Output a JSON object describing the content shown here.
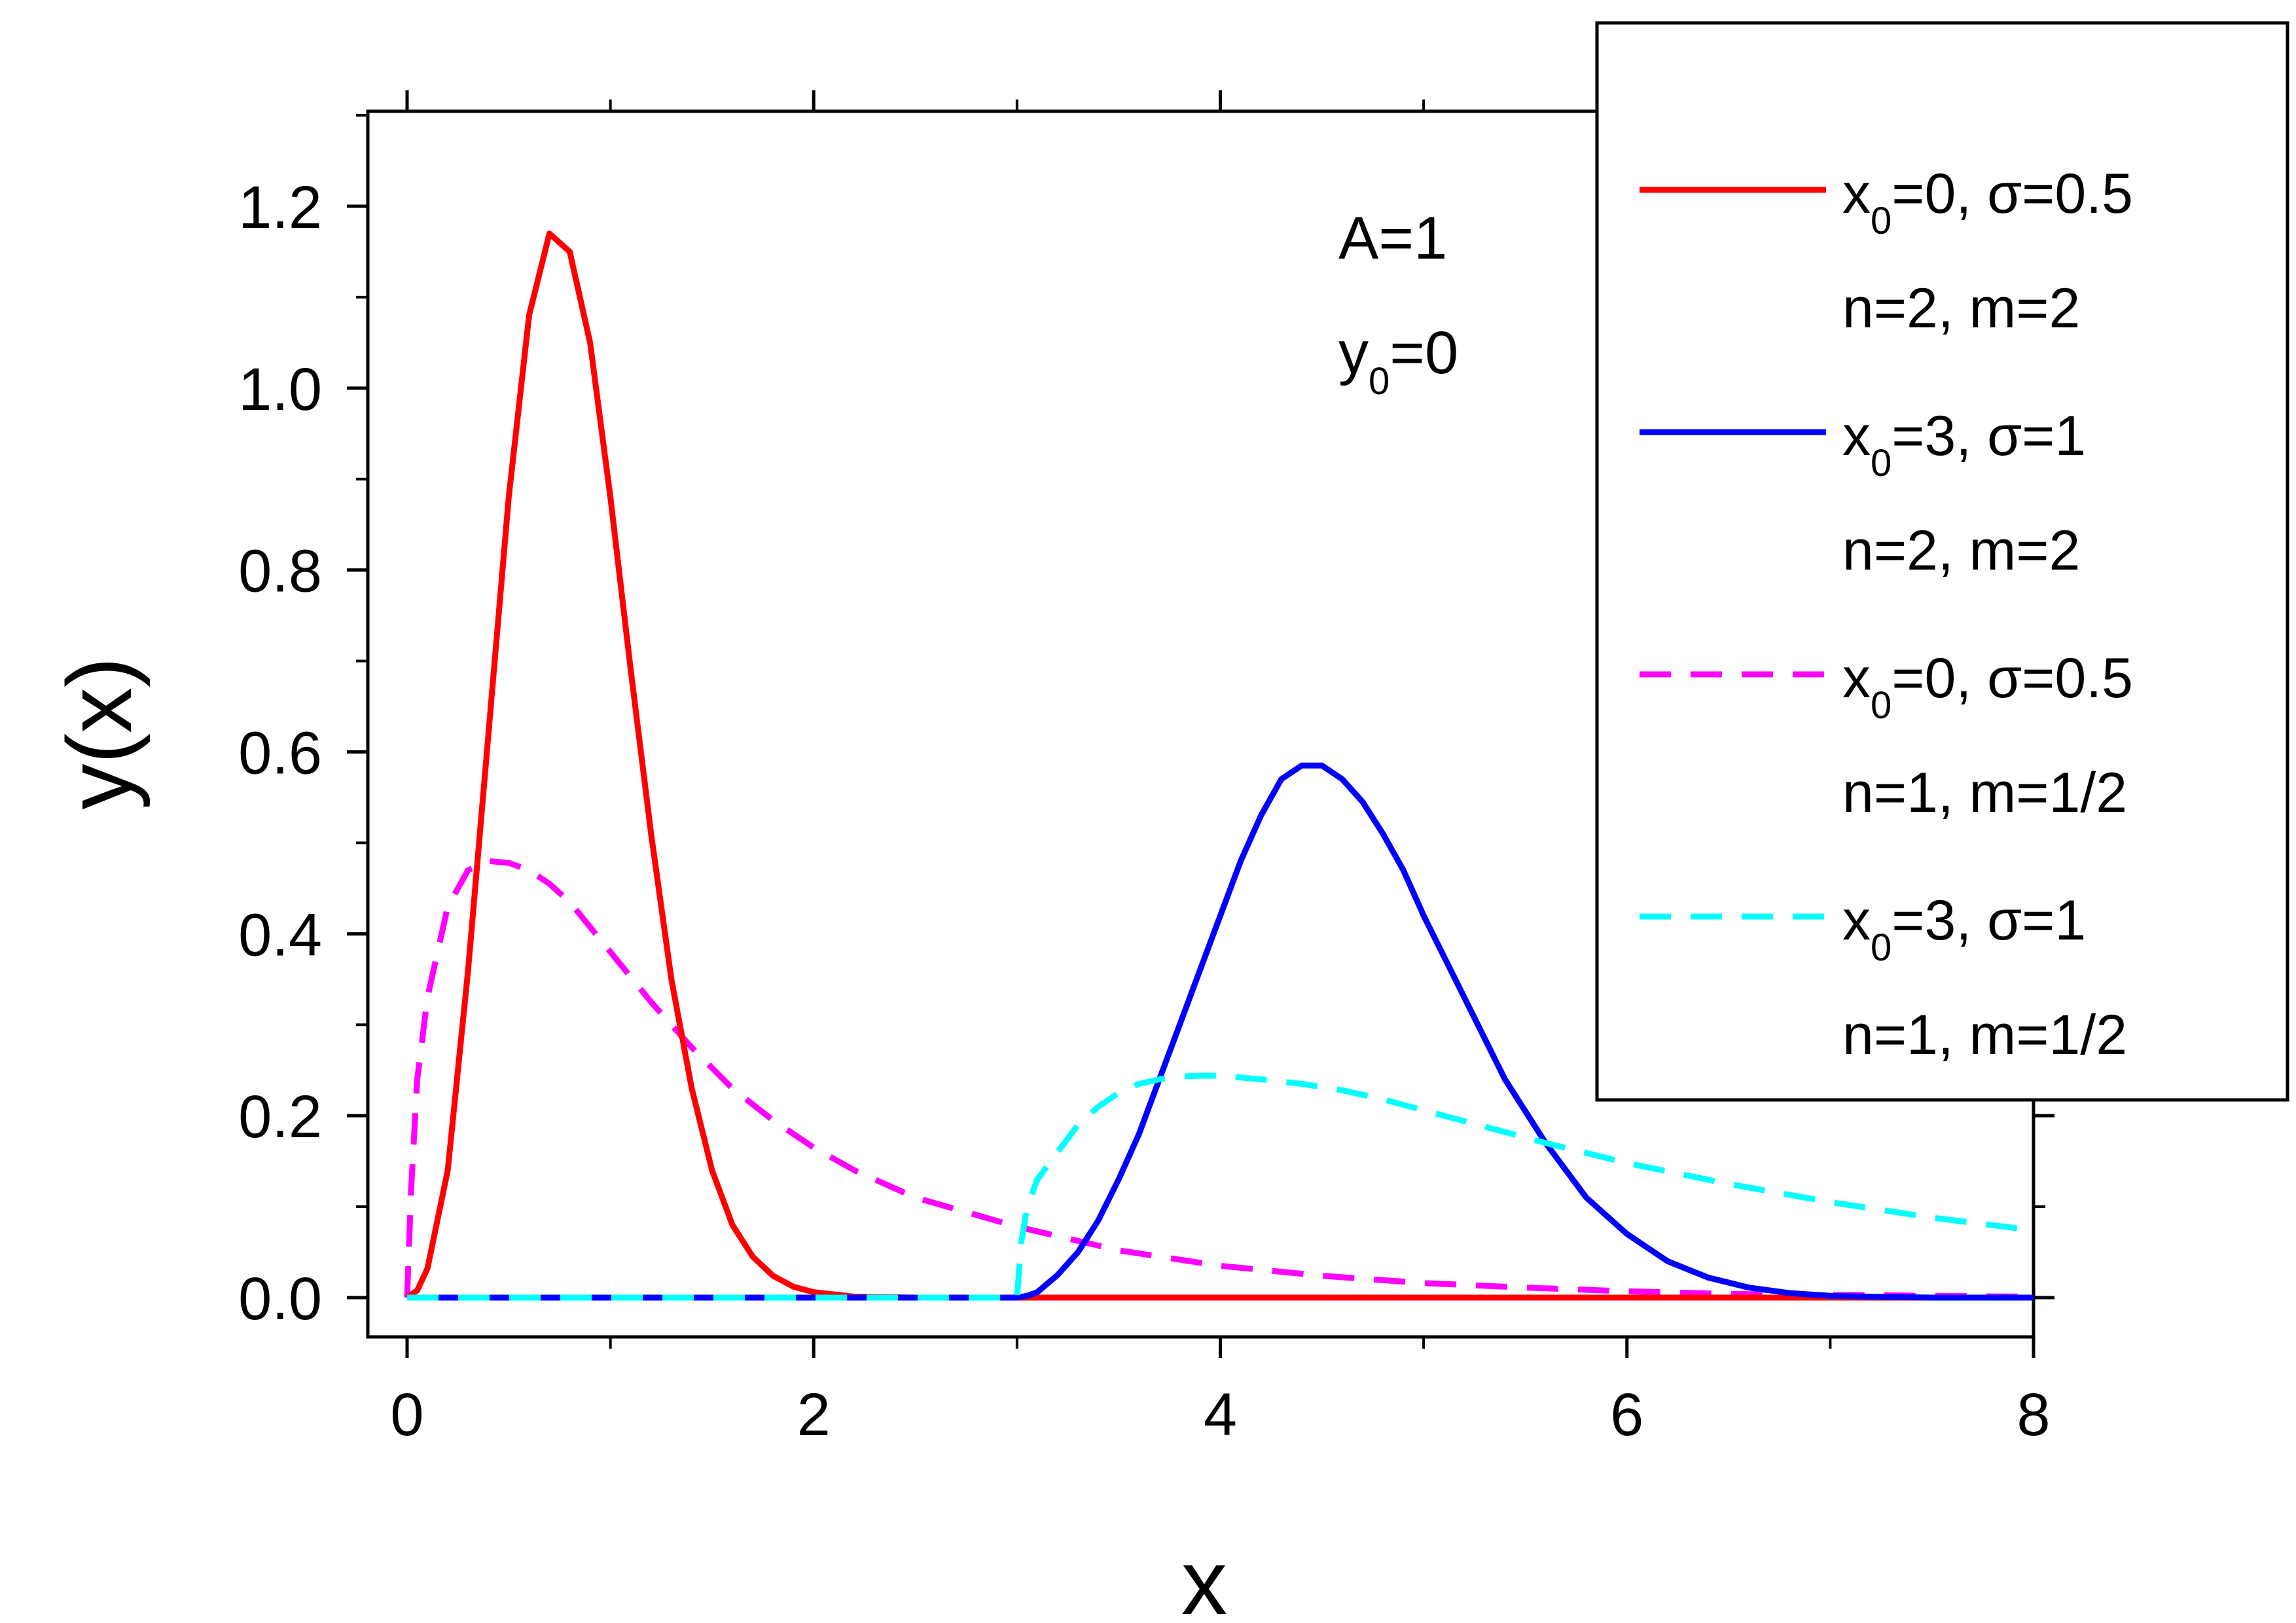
{
  "chart_data": {
    "type": "line",
    "xlabel": "x",
    "ylabel": "y(x)",
    "xlim": [
      -0.2,
      8
    ],
    "ylim": [
      -0.05,
      1.3
    ],
    "xticks": [
      0,
      2,
      4,
      6,
      8
    ],
    "xtick_labels": [
      "0",
      "2",
      "4",
      "6",
      "8"
    ],
    "yticks": [
      0.0,
      0.2,
      0.4,
      0.6,
      0.8,
      1.0,
      1.2
    ],
    "ytick_labels": [
      "0.0",
      "0.2",
      "0.4",
      "0.6",
      "0.8",
      "1.0",
      "1.2"
    ],
    "grid": false,
    "legend_position": "top-right",
    "annotations": [
      {
        "base": "A=1",
        "sub": "",
        "rest": ""
      },
      {
        "base": "y",
        "sub": "0",
        "rest": "=0"
      }
    ],
    "series": [
      {
        "legend_line1": {
          "base": "x",
          "sub": "0",
          "rest": "=0, σ=0.5"
        },
        "legend_line2": "n=2, m=2",
        "color": "#ff0000",
        "dash": "solid",
        "points": [
          [
            0,
            0
          ],
          [
            0.05,
            0.008
          ],
          [
            0.1,
            0.032
          ],
          [
            0.2,
            0.14
          ],
          [
            0.3,
            0.36
          ],
          [
            0.4,
            0.62
          ],
          [
            0.5,
            0.88
          ],
          [
            0.6,
            1.08
          ],
          [
            0.7,
            1.17
          ],
          [
            0.8,
            1.15
          ],
          [
            0.9,
            1.05
          ],
          [
            1.0,
            0.88
          ],
          [
            1.1,
            0.69
          ],
          [
            1.2,
            0.51
          ],
          [
            1.3,
            0.35
          ],
          [
            1.4,
            0.23
          ],
          [
            1.5,
            0.14
          ],
          [
            1.6,
            0.08
          ],
          [
            1.7,
            0.045
          ],
          [
            1.8,
            0.024
          ],
          [
            1.9,
            0.012
          ],
          [
            2.0,
            0.006
          ],
          [
            2.2,
            0.001
          ],
          [
            2.5,
            0
          ],
          [
            3,
            0
          ],
          [
            4,
            0
          ],
          [
            5,
            0
          ],
          [
            6,
            0
          ],
          [
            7,
            0
          ],
          [
            8,
            0
          ]
        ]
      },
      {
        "legend_line1": {
          "base": "x",
          "sub": "0",
          "rest": "=3, σ=1"
        },
        "legend_line2": "n=2, m=2",
        "color": "#0000ff",
        "dash": "solid",
        "points": [
          [
            0,
            0
          ],
          [
            1,
            0
          ],
          [
            2,
            0
          ],
          [
            3,
            0
          ],
          [
            3.05,
            0.002
          ],
          [
            3.1,
            0.006
          ],
          [
            3.2,
            0.025
          ],
          [
            3.3,
            0.05
          ],
          [
            3.4,
            0.085
          ],
          [
            3.5,
            0.13
          ],
          [
            3.6,
            0.18
          ],
          [
            3.7,
            0.24
          ],
          [
            3.8,
            0.3
          ],
          [
            3.9,
            0.36
          ],
          [
            4.0,
            0.42
          ],
          [
            4.1,
            0.48
          ],
          [
            4.2,
            0.53
          ],
          [
            4.3,
            0.57
          ],
          [
            4.4,
            0.585
          ],
          [
            4.5,
            0.585
          ],
          [
            4.6,
            0.57
          ],
          [
            4.7,
            0.545
          ],
          [
            4.8,
            0.51
          ],
          [
            4.9,
            0.47
          ],
          [
            5.0,
            0.42
          ],
          [
            5.2,
            0.33
          ],
          [
            5.4,
            0.24
          ],
          [
            5.6,
            0.17
          ],
          [
            5.8,
            0.11
          ],
          [
            6.0,
            0.07
          ],
          [
            6.2,
            0.04
          ],
          [
            6.4,
            0.022
          ],
          [
            6.6,
            0.011
          ],
          [
            6.8,
            0.005
          ],
          [
            7.0,
            0.002
          ],
          [
            7.2,
            0.001
          ],
          [
            7.5,
            0
          ],
          [
            8,
            0
          ]
        ]
      },
      {
        "legend_line1": {
          "base": "x",
          "sub": "0",
          "rest": "=0, σ=0.5"
        },
        "legend_line2": "n=1, m=1/2",
        "color": "#ff00ff",
        "dash": "dashed",
        "points": [
          [
            0,
            0
          ],
          [
            0.02,
            0.12
          ],
          [
            0.05,
            0.24
          ],
          [
            0.1,
            0.33
          ],
          [
            0.2,
            0.43
          ],
          [
            0.3,
            0.47
          ],
          [
            0.4,
            0.48
          ],
          [
            0.5,
            0.478
          ],
          [
            0.6,
            0.47
          ],
          [
            0.7,
            0.455
          ],
          [
            0.8,
            0.435
          ],
          [
            1.0,
            0.38
          ],
          [
            1.2,
            0.325
          ],
          [
            1.4,
            0.275
          ],
          [
            1.6,
            0.23
          ],
          [
            1.8,
            0.195
          ],
          [
            2.0,
            0.165
          ],
          [
            2.2,
            0.14
          ],
          [
            2.5,
            0.11
          ],
          [
            3.0,
            0.078
          ],
          [
            3.5,
            0.052
          ],
          [
            4.0,
            0.035
          ],
          [
            4.5,
            0.024
          ],
          [
            5.0,
            0.016
          ],
          [
            5.5,
            0.011
          ],
          [
            6.0,
            0.007
          ],
          [
            6.5,
            0.004
          ],
          [
            7.0,
            0.003
          ],
          [
            7.5,
            0.002
          ],
          [
            8.0,
            0.001
          ]
        ]
      },
      {
        "legend_line1": {
          "base": "x",
          "sub": "0",
          "rest": "=3, σ=1"
        },
        "legend_line2": "n=1, m=1/2",
        "color": "#00ffff",
        "dash": "dashed",
        "points": [
          [
            0,
            0
          ],
          [
            1,
            0
          ],
          [
            2,
            0
          ],
          [
            3,
            0
          ],
          [
            3.02,
            0.06
          ],
          [
            3.05,
            0.1
          ],
          [
            3.1,
            0.13
          ],
          [
            3.2,
            0.16
          ],
          [
            3.3,
            0.19
          ],
          [
            3.4,
            0.21
          ],
          [
            3.5,
            0.225
          ],
          [
            3.6,
            0.235
          ],
          [
            3.7,
            0.24
          ],
          [
            3.8,
            0.243
          ],
          [
            3.9,
            0.244
          ],
          [
            4.0,
            0.244
          ],
          [
            4.2,
            0.24
          ],
          [
            4.4,
            0.235
          ],
          [
            4.6,
            0.228
          ],
          [
            4.8,
            0.218
          ],
          [
            5.0,
            0.206
          ],
          [
            5.3,
            0.188
          ],
          [
            5.6,
            0.17
          ],
          [
            6.0,
            0.148
          ],
          [
            6.5,
            0.125
          ],
          [
            7.0,
            0.105
          ],
          [
            7.5,
            0.088
          ],
          [
            8.0,
            0.074
          ]
        ]
      }
    ]
  }
}
